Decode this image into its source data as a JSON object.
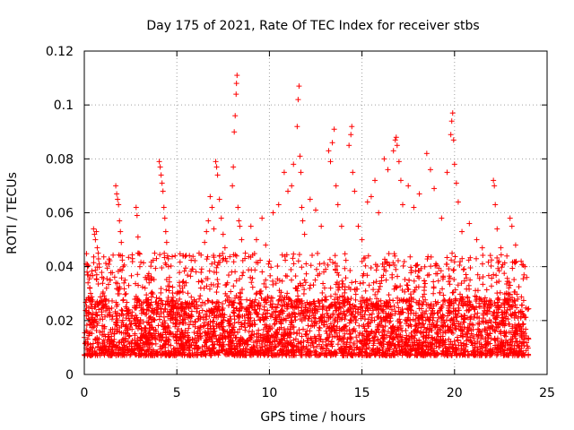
{
  "chart_data": {
    "type": "scatter",
    "title": "Day 175 of 2021, Rate Of TEC Index for receiver stbs",
    "xlabel": "GPS time / hours",
    "ylabel": "ROTI / TECUs",
    "xlim": [
      0,
      25
    ],
    "ylim": [
      0,
      0.12
    ],
    "x_ticks": [
      0,
      5,
      10,
      15,
      20,
      25
    ],
    "x_tick_labels": [
      "0",
      "5",
      "10",
      "15",
      "20",
      "25"
    ],
    "y_ticks": [
      0,
      0.02,
      0.04,
      0.06,
      0.08,
      0.1,
      0.12
    ],
    "y_tick_labels": [
      "0",
      "0.02",
      "0.04",
      "0.06",
      "0.08",
      "0.1",
      "0.12"
    ],
    "grid": true,
    "marker": "plus",
    "marker_color": "#ff0000",
    "series": [
      {
        "name": "ROTI",
        "baseline_band": [
          0.007,
          0.028
        ],
        "points": [
          [
            0.1,
            0.041
          ],
          [
            0.15,
            0.038
          ],
          [
            0.2,
            0.034
          ],
          [
            0.3,
            0.032
          ],
          [
            0.4,
            0.027
          ],
          [
            0.5,
            0.054
          ],
          [
            0.55,
            0.052
          ],
          [
            0.6,
            0.05
          ],
          [
            0.65,
            0.053
          ],
          [
            0.7,
            0.047
          ],
          [
            0.75,
            0.045
          ],
          [
            0.8,
            0.041
          ],
          [
            1.0,
            0.03
          ],
          [
            1.2,
            0.032
          ],
          [
            1.4,
            0.035
          ],
          [
            1.7,
            0.07
          ],
          [
            1.75,
            0.067
          ],
          [
            1.8,
            0.065
          ],
          [
            1.85,
            0.063
          ],
          [
            1.9,
            0.057
          ],
          [
            1.95,
            0.053
          ],
          [
            2.0,
            0.049
          ],
          [
            2.05,
            0.044
          ],
          [
            2.1,
            0.04
          ],
          [
            2.2,
            0.035
          ],
          [
            2.4,
            0.033
          ],
          [
            2.8,
            0.062
          ],
          [
            2.85,
            0.059
          ],
          [
            2.9,
            0.051
          ],
          [
            2.95,
            0.045
          ],
          [
            3.0,
            0.04
          ],
          [
            3.3,
            0.036
          ],
          [
            3.5,
            0.034
          ],
          [
            3.8,
            0.045
          ],
          [
            3.9,
            0.043
          ],
          [
            4.05,
            0.079
          ],
          [
            4.1,
            0.077
          ],
          [
            4.15,
            0.074
          ],
          [
            4.2,
            0.071
          ],
          [
            4.25,
            0.068
          ],
          [
            4.3,
            0.062
          ],
          [
            4.35,
            0.058
          ],
          [
            4.4,
            0.053
          ],
          [
            4.45,
            0.049
          ],
          [
            4.5,
            0.044
          ],
          [
            4.55,
            0.04
          ],
          [
            4.6,
            0.036
          ],
          [
            5.0,
            0.03
          ],
          [
            5.3,
            0.032
          ],
          [
            5.5,
            0.034
          ],
          [
            6.2,
            0.045
          ],
          [
            6.5,
            0.049
          ],
          [
            6.6,
            0.053
          ],
          [
            6.7,
            0.057
          ],
          [
            6.8,
            0.066
          ],
          [
            6.9,
            0.062
          ],
          [
            7.0,
            0.054
          ],
          [
            7.1,
            0.079
          ],
          [
            7.15,
            0.077
          ],
          [
            7.2,
            0.074
          ],
          [
            7.3,
            0.065
          ],
          [
            7.4,
            0.058
          ],
          [
            7.5,
            0.052
          ],
          [
            7.6,
            0.047
          ],
          [
            8.0,
            0.07
          ],
          [
            8.05,
            0.077
          ],
          [
            8.1,
            0.09
          ],
          [
            8.15,
            0.096
          ],
          [
            8.2,
            0.104
          ],
          [
            8.22,
            0.108
          ],
          [
            8.25,
            0.111
          ],
          [
            8.3,
            0.062
          ],
          [
            8.35,
            0.057
          ],
          [
            8.4,
            0.055
          ],
          [
            8.5,
            0.05
          ],
          [
            8.7,
            0.045
          ],
          [
            9.0,
            0.055
          ],
          [
            9.3,
            0.05
          ],
          [
            9.6,
            0.058
          ],
          [
            9.8,
            0.048
          ],
          [
            10.0,
            0.042
          ],
          [
            10.2,
            0.06
          ],
          [
            10.5,
            0.063
          ],
          [
            10.8,
            0.075
          ],
          [
            11.0,
            0.068
          ],
          [
            11.2,
            0.07
          ],
          [
            11.3,
            0.078
          ],
          [
            11.5,
            0.092
          ],
          [
            11.55,
            0.102
          ],
          [
            11.6,
            0.107
          ],
          [
            11.65,
            0.081
          ],
          [
            11.7,
            0.075
          ],
          [
            11.75,
            0.062
          ],
          [
            11.8,
            0.057
          ],
          [
            11.9,
            0.052
          ],
          [
            12.2,
            0.065
          ],
          [
            12.5,
            0.061
          ],
          [
            12.8,
            0.055
          ],
          [
            13.2,
            0.083
          ],
          [
            13.3,
            0.079
          ],
          [
            13.4,
            0.086
          ],
          [
            13.5,
            0.091
          ],
          [
            13.6,
            0.07
          ],
          [
            13.7,
            0.063
          ],
          [
            13.9,
            0.055
          ],
          [
            14.3,
            0.085
          ],
          [
            14.4,
            0.089
          ],
          [
            14.45,
            0.092
          ],
          [
            14.5,
            0.075
          ],
          [
            14.6,
            0.068
          ],
          [
            14.8,
            0.055
          ],
          [
            15.0,
            0.05
          ],
          [
            15.3,
            0.064
          ],
          [
            15.5,
            0.066
          ],
          [
            15.7,
            0.072
          ],
          [
            15.9,
            0.06
          ],
          [
            16.2,
            0.08
          ],
          [
            16.4,
            0.076
          ],
          [
            16.7,
            0.083
          ],
          [
            16.8,
            0.087
          ],
          [
            16.85,
            0.088
          ],
          [
            16.9,
            0.085
          ],
          [
            17.0,
            0.079
          ],
          [
            17.1,
            0.072
          ],
          [
            17.2,
            0.063
          ],
          [
            17.5,
            0.07
          ],
          [
            17.8,
            0.062
          ],
          [
            18.1,
            0.067
          ],
          [
            18.5,
            0.082
          ],
          [
            18.7,
            0.076
          ],
          [
            18.9,
            0.069
          ],
          [
            19.3,
            0.058
          ],
          [
            19.6,
            0.075
          ],
          [
            19.8,
            0.089
          ],
          [
            19.85,
            0.094
          ],
          [
            19.9,
            0.097
          ],
          [
            19.95,
            0.087
          ],
          [
            20.0,
            0.078
          ],
          [
            20.1,
            0.071
          ],
          [
            20.2,
            0.064
          ],
          [
            20.4,
            0.053
          ],
          [
            20.8,
            0.056
          ],
          [
            21.2,
            0.05
          ],
          [
            21.5,
            0.047
          ],
          [
            22.1,
            0.072
          ],
          [
            22.15,
            0.07
          ],
          [
            22.2,
            0.063
          ],
          [
            22.3,
            0.054
          ],
          [
            22.5,
            0.047
          ],
          [
            23.0,
            0.058
          ],
          [
            23.1,
            0.055
          ],
          [
            23.3,
            0.048
          ],
          [
            23.6,
            0.042
          ],
          [
            23.8,
            0.04
          ],
          [
            23.9,
            0.036
          ]
        ]
      }
    ]
  }
}
